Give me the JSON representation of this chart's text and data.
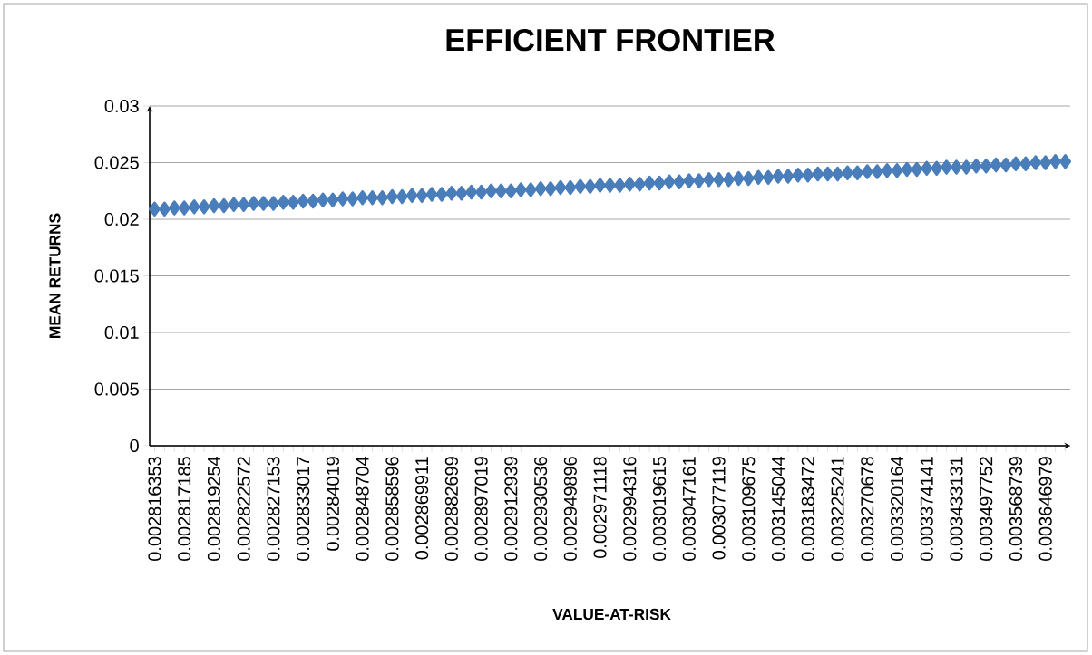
{
  "chart_data": {
    "type": "scatter",
    "title": "EFFICIENT FRONTIER",
    "xlabel": "VALUE-AT-RISK",
    "ylabel": "MEAN RETURNS",
    "categories": [
      "0.002816353",
      null,
      null,
      "0.002817185",
      null,
      null,
      "0.002819254",
      null,
      null,
      "0.002822572",
      null,
      null,
      "0.002827153",
      null,
      null,
      "0.002833017",
      null,
      null,
      "0.00284019",
      null,
      null,
      "0.002848704",
      null,
      null,
      "0.002858596",
      null,
      null,
      "0.002869911",
      null,
      null,
      "0.002882699",
      null,
      null,
      "0.002897019",
      null,
      null,
      "0.002912939",
      null,
      null,
      "0.002930536",
      null,
      null,
      "0.002949896",
      null,
      null,
      "0.002971118",
      null,
      null,
      "0.002994316",
      null,
      null,
      "0.003019615",
      null,
      null,
      "0.003047161",
      null,
      null,
      "0.003077119",
      null,
      null,
      "0.003109675",
      null,
      null,
      "0.003145044",
      null,
      null,
      "0.003183472",
      null,
      null,
      "0.003225241",
      null,
      null,
      "0.003270678",
      null,
      null,
      "0.003320164",
      null,
      null,
      "0.003374141",
      null,
      null,
      "0.003433131",
      null,
      null,
      "0.003497752",
      null,
      null,
      "0.003568739",
      null,
      null,
      "0.003646979",
      null,
      null
    ],
    "series": [
      {
        "color": "#4a7ebb",
        "values": [
          0.0209,
          0.0209,
          0.021,
          0.021,
          0.0211,
          0.0211,
          0.0212,
          0.0212,
          0.0213,
          0.0213,
          0.0214,
          0.0214,
          0.0214,
          0.0215,
          0.0215,
          0.0216,
          0.0216,
          0.0217,
          0.0217,
          0.0218,
          0.0218,
          0.0219,
          0.0219,
          0.0219,
          0.022,
          0.022,
          0.0221,
          0.0221,
          0.0222,
          0.0222,
          0.0223,
          0.0223,
          0.0224,
          0.0224,
          0.0225,
          0.0225,
          0.0225,
          0.0226,
          0.0226,
          0.0227,
          0.0227,
          0.0228,
          0.0228,
          0.0229,
          0.0229,
          0.023,
          0.023,
          0.023,
          0.0231,
          0.0231,
          0.0232,
          0.0232,
          0.0233,
          0.0233,
          0.0234,
          0.0234,
          0.0235,
          0.0235,
          0.0235,
          0.0236,
          0.0236,
          0.0237,
          0.0237,
          0.0238,
          0.0238,
          0.0239,
          0.0239,
          0.024,
          0.024,
          0.024,
          0.0241,
          0.0241,
          0.0242,
          0.0242,
          0.0243,
          0.0243,
          0.0244,
          0.0244,
          0.0245,
          0.0245,
          0.0246,
          0.0246,
          0.0246,
          0.0247,
          0.0247,
          0.0248,
          0.0248,
          0.0249,
          0.0249,
          0.025,
          0.025,
          0.0251,
          0.0251
        ]
      }
    ],
    "ylim": [
      0,
      0.03
    ],
    "yticks": [
      0,
      0.005,
      0.01,
      0.015,
      0.02,
      0.025,
      0.03
    ],
    "grid": "y",
    "marker": "diamond"
  }
}
